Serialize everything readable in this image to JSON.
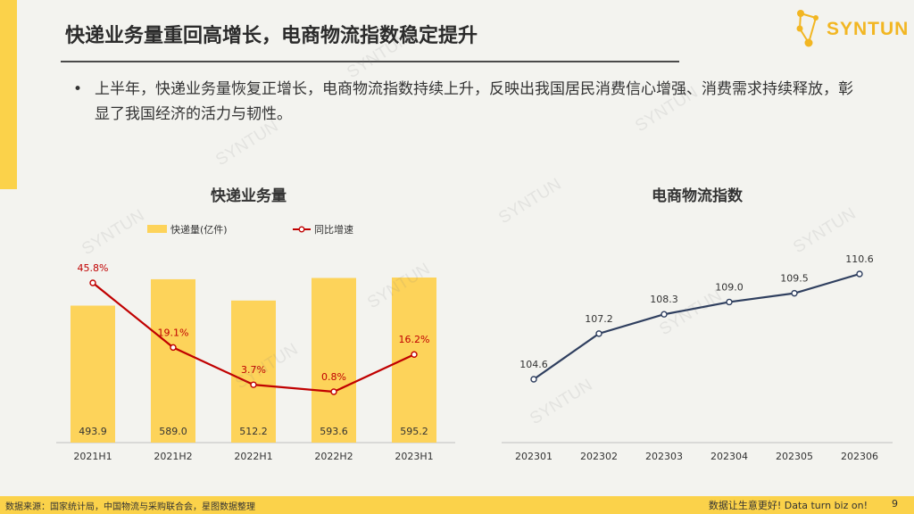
{
  "header": {
    "title": "快递业务量重回高增长，电商物流指数稳定提升",
    "logo_text": "SYNTUN"
  },
  "bullet": {
    "marker": "•",
    "text": "上半年，快递业务量恢复正增长，电商物流指数持续上升，反映出我国居民消费信心增强、消费需求持续释放，彰显了我国经济的活力与韧性。"
  },
  "watermark_text": "SYNTUN",
  "colors": {
    "accent": "#fbd24a",
    "bar": "#fdd35a",
    "growth_line": "#c00000",
    "index_line": "#2f3f5f"
  },
  "chart_data": [
    {
      "type": "bar",
      "title": "快递业务量",
      "categories": [
        "2021H1",
        "2021H2",
        "2022H1",
        "2022H2",
        "2023H1"
      ],
      "series": [
        {
          "name": "快递量(亿件)",
          "type": "bar",
          "values": [
            493.9,
            589.0,
            512.2,
            593.6,
            595.2
          ],
          "labels": [
            "493.9",
            "589.0",
            "512.2",
            "593.6",
            "595.2"
          ]
        },
        {
          "name": "同比增速",
          "type": "line",
          "values": [
            45.8,
            19.1,
            3.7,
            0.8,
            16.2
          ],
          "labels": [
            "45.8%",
            "19.1%",
            "3.7%",
            "0.8%",
            "16.2%"
          ]
        }
      ],
      "legend": "top"
    },
    {
      "type": "line",
      "title": "电商物流指数",
      "categories": [
        "202301",
        "202302",
        "202303",
        "202304",
        "202305",
        "202306"
      ],
      "series": [
        {
          "name": "电商物流指数",
          "values": [
            104.6,
            107.2,
            108.3,
            109.0,
            109.5,
            110.6
          ],
          "labels": [
            "104.6",
            "107.2",
            "108.3",
            "109.0",
            "109.5",
            "110.6"
          ]
        }
      ]
    }
  ],
  "footer": {
    "source": "数据来源：国家统计局，中国物流与采购联合会，星图数据整理",
    "slogan": "数据让生意更好! Data turn biz on!",
    "page": "9"
  }
}
